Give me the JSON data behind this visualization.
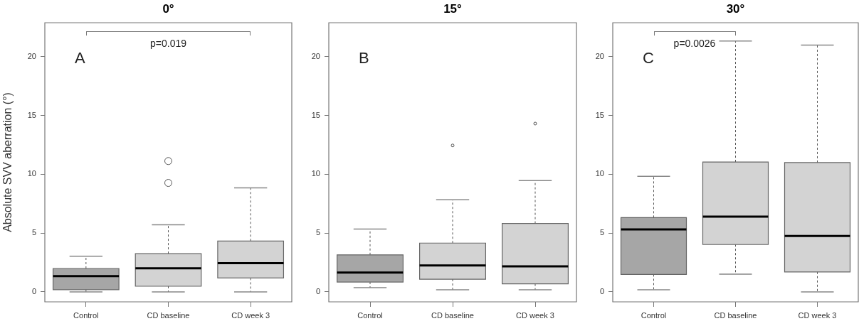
{
  "chart_data": [
    {
      "type": "box",
      "title": "0°",
      "ylabel": "Absolute SVV aberration (°)",
      "categories": [
        "Control",
        "CD baseline",
        "CD week 3"
      ],
      "colors": [
        "#a6a6a6",
        "#d3d3d3",
        "#d3d3d3"
      ],
      "ylim": [
        -0.85,
        22.9
      ],
      "yticks": [
        0,
        5,
        10,
        15,
        20
      ],
      "grid": false,
      "annotations": [
        "A",
        "p=0.019"
      ],
      "boxes": [
        {
          "low": 0,
          "q1": 0.18,
          "median": 1.34,
          "q3": 1.99,
          "high": 3.03
        },
        {
          "low": 0,
          "q1": 0.48,
          "median": 2.0,
          "q3": 3.25,
          "high": 5.7,
          "outliers": [
            9.27,
            11.13
          ]
        },
        {
          "low": 0,
          "q1": 1.18,
          "median": 2.45,
          "q3": 4.33,
          "high": 8.85
        }
      ]
    },
    {
      "type": "box",
      "title": "15°",
      "categories": [
        "Control",
        "CD baseline",
        "CD week 3"
      ],
      "colors": [
        "#a6a6a6",
        "#d3d3d3",
        "#d3d3d3"
      ],
      "ylim": [
        -0.85,
        22.9
      ],
      "yticks": [
        0,
        5,
        10,
        15,
        20
      ],
      "grid": false,
      "annotations": [
        "B"
      ],
      "boxes": [
        {
          "low": 0.36,
          "q1": 0.84,
          "median": 1.64,
          "q3": 3.15,
          "high": 5.34
        },
        {
          "low": 0.18,
          "q1": 1.08,
          "median": 2.25,
          "q3": 4.15,
          "high": 7.84,
          "outliers": [
            12.46
          ]
        },
        {
          "low": 0.18,
          "q1": 0.68,
          "median": 2.17,
          "q3": 5.82,
          "high": 9.47,
          "outliers": [
            14.32
          ]
        }
      ]
    },
    {
      "type": "box",
      "title": "30°",
      "categories": [
        "Control",
        "CD baseline",
        "CD week 3"
      ],
      "colors": [
        "#a6a6a6",
        "#d3d3d3",
        "#d3d3d3"
      ],
      "ylim": [
        -0.85,
        22.9
      ],
      "yticks": [
        0,
        5,
        10,
        15,
        20
      ],
      "grid": false,
      "annotations": [
        "C",
        "p=0.0026"
      ],
      "boxes": [
        {
          "low": 0.18,
          "q1": 1.48,
          "median": 5.32,
          "q3": 6.32,
          "high": 9.83
        },
        {
          "low": 1.5,
          "q1": 4.03,
          "median": 6.4,
          "q3": 11.05,
          "high": 21.34
        },
        {
          "low": 0,
          "q1": 1.7,
          "median": 4.75,
          "q3": 11.0,
          "high": 21.0
        }
      ]
    }
  ]
}
